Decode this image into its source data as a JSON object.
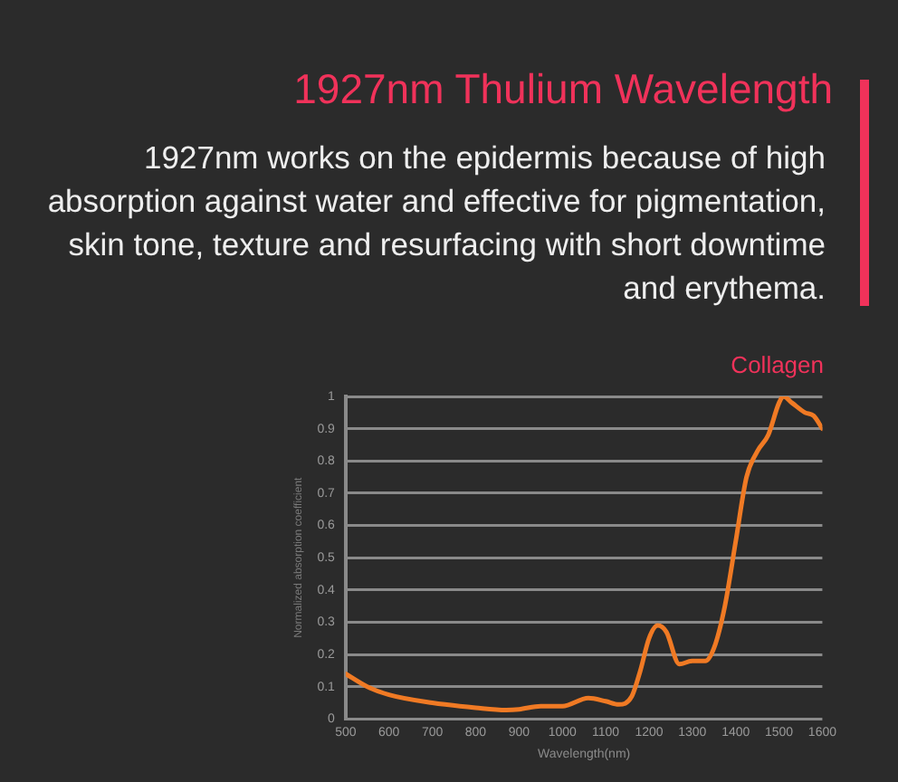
{
  "chart_data": {
    "type": "line",
    "title": "1927nm Thulium Wavelength",
    "subtitle": "1927nm works on the epidermis because of high absorption against water and effective for pigmentation, skin tone, texture and resurfacing with short downtime and erythema.",
    "xlabel": "Wavelength(nm)",
    "ylabel": "Normalized absorption coefficient",
    "x": [
      500,
      550,
      600,
      700,
      800,
      870,
      900,
      950,
      1000,
      1060,
      1100,
      1130,
      1160,
      1180,
      1200,
      1220,
      1240,
      1270,
      1300,
      1330,
      1350,
      1375,
      1400,
      1425,
      1450,
      1475,
      1500,
      1510,
      1530,
      1560,
      1580,
      1600
    ],
    "series": [
      {
        "name": "Collagen",
        "color": "#f07a24",
        "values": [
          0.14,
          0.1,
          0.075,
          0.05,
          0.035,
          0.028,
          0.03,
          0.04,
          0.04,
          0.065,
          0.055,
          0.045,
          0.07,
          0.15,
          0.25,
          0.29,
          0.27,
          0.17,
          0.18,
          0.18,
          0.22,
          0.35,
          0.55,
          0.75,
          0.83,
          0.88,
          0.98,
          1.0,
          0.98,
          0.95,
          0.94,
          0.9
        ]
      }
    ],
    "xlim": [
      500,
      1600
    ],
    "xticks": [
      500,
      600,
      700,
      800,
      900,
      1000,
      1100,
      1200,
      1300,
      1400,
      1500,
      1600
    ],
    "ylim": [
      0,
      1
    ],
    "yticks": [
      0,
      0.1,
      0.2,
      0.3,
      0.4,
      0.5,
      0.6,
      0.7,
      0.8,
      0.9,
      1
    ],
    "grid": "y",
    "legend": "top right",
    "marker": "none",
    "line_style": "solid"
  }
}
